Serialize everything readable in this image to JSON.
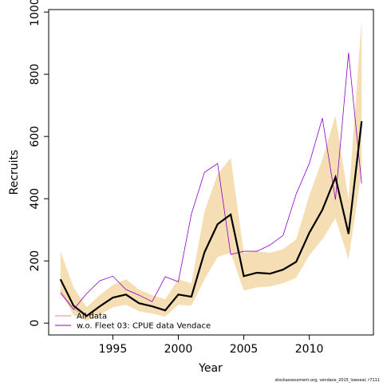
{
  "chart_data": {
    "type": "line",
    "xlabel": "Year",
    "ylabel": "Recruits",
    "x": [
      1991,
      1992,
      1993,
      1994,
      1995,
      1996,
      1997,
      1998,
      1999,
      2000,
      2001,
      2002,
      2003,
      2004,
      2005,
      2006,
      2007,
      2008,
      2009,
      2010,
      2011,
      2012,
      2013,
      2014
    ],
    "band": {
      "color": "#f5deb3",
      "upper": [
        231,
        115,
        51,
        90,
        123,
        141,
        108,
        90,
        77,
        141,
        128,
        359,
        479,
        531,
        226,
        231,
        226,
        238,
        269,
        410,
        526,
        667,
        397,
        974
      ],
      "lower": [
        103,
        26,
        8,
        26,
        51,
        59,
        38,
        31,
        21,
        59,
        56,
        141,
        213,
        226,
        105,
        115,
        118,
        128,
        146,
        218,
        269,
        338,
        205,
        487
      ]
    },
    "main_line": {
      "color": "#000000",
      "values": [
        141,
        56,
        23,
        54,
        82,
        92,
        64,
        54,
        41,
        92,
        85,
        228,
        318,
        349,
        151,
        162,
        159,
        172,
        197,
        290,
        364,
        469,
        287,
        649
      ]
    },
    "series": [
      {
        "name": "All data",
        "color": "#f08080",
        "values": [
          103,
          45,
          23,
          54,
          82,
          92,
          64,
          54,
          41,
          92,
          85,
          228,
          318,
          349,
          151,
          162,
          159,
          172,
          197,
          290,
          364,
          469,
          287,
          649
        ]
      },
      {
        "name": "w.o. Fleet 03:  CPUE data Vendace",
        "color": "#8b00c8",
        "values": [
          97,
          44,
          95,
          136,
          151,
          108,
          90,
          69,
          149,
          133,
          351,
          485,
          513,
          221,
          231,
          231,
          251,
          282,
          415,
          513,
          659,
          397,
          869,
          449
        ]
      }
    ],
    "xlim": [
      1990.1,
      2014.9
    ],
    "ylim": [
      -38,
      1008
    ],
    "xticks": [
      1995,
      2000,
      2005,
      2010
    ],
    "yticks": [
      0,
      200,
      400,
      600,
      800,
      1000
    ],
    "footer": "stockassessment.org, vendace_2015_lowseal, r7111"
  }
}
